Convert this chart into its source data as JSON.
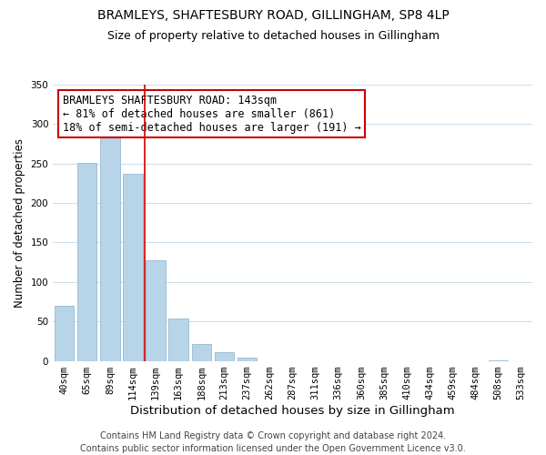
{
  "title": "BRAMLEYS, SHAFTESBURY ROAD, GILLINGHAM, SP8 4LP",
  "subtitle": "Size of property relative to detached houses in Gillingham",
  "xlabel": "Distribution of detached houses by size in Gillingham",
  "ylabel": "Number of detached properties",
  "bin_labels": [
    "40sqm",
    "65sqm",
    "89sqm",
    "114sqm",
    "139sqm",
    "163sqm",
    "188sqm",
    "213sqm",
    "237sqm",
    "262sqm",
    "287sqm",
    "311sqm",
    "336sqm",
    "360sqm",
    "385sqm",
    "410sqm",
    "434sqm",
    "459sqm",
    "484sqm",
    "508sqm",
    "533sqm"
  ],
  "bar_heights": [
    70,
    251,
    286,
    237,
    128,
    54,
    22,
    11,
    4,
    0,
    0,
    0,
    0,
    0,
    0,
    0,
    0,
    0,
    0,
    1,
    0
  ],
  "bar_color_normal": "#b8d4e8",
  "highlight_bar_index": 4,
  "ylim": [
    0,
    350
  ],
  "yticks": [
    0,
    50,
    100,
    150,
    200,
    250,
    300,
    350
  ],
  "annotation_text": "BRAMLEYS SHAFTESBURY ROAD: 143sqm\n← 81% of detached houses are smaller (861)\n18% of semi-detached houses are larger (191) →",
  "annotation_box_color": "#ffffff",
  "annotation_box_edge": "#cc0000",
  "red_line_color": "#cc0000",
  "footer_line1": "Contains HM Land Registry data © Crown copyright and database right 2024.",
  "footer_line2": "Contains public sector information licensed under the Open Government Licence v3.0.",
  "background_color": "#ffffff",
  "grid_color": "#ccdce8",
  "title_fontsize": 10,
  "subtitle_fontsize": 9,
  "xlabel_fontsize": 9.5,
  "ylabel_fontsize": 8.5,
  "tick_fontsize": 7.5,
  "annotation_fontsize": 8.5,
  "footer_fontsize": 7
}
